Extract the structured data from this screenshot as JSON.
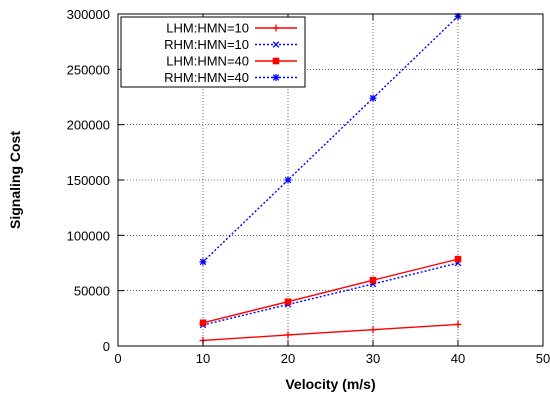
{
  "chart_data": {
    "type": "line",
    "xlabel": "Velocity (m/s)",
    "ylabel": "Signaling Cost",
    "xlim": [
      0,
      50
    ],
    "ylim": [
      0,
      300000
    ],
    "xticks": [
      "0",
      "10",
      "20",
      "30",
      "40",
      "50"
    ],
    "yticks": [
      "0",
      "50000",
      "100000",
      "150000",
      "200000",
      "250000",
      "300000"
    ],
    "grid": true,
    "legend_position": "top-left",
    "series": [
      {
        "name": "LHM:HMN=10",
        "color": "#ff0000",
        "dash": "solid",
        "marker": "plus",
        "x": [
          10,
          20,
          30,
          40
        ],
        "values": [
          5000,
          10000,
          14700,
          19500
        ]
      },
      {
        "name": "RHM:HMN=10",
        "color": "#0000ff",
        "dash": "dotted",
        "marker": "cross",
        "x": [
          10,
          20,
          30,
          40
        ],
        "values": [
          19000,
          37500,
          56000,
          75000
        ]
      },
      {
        "name": "LHM:HMN=40",
        "color": "#ff0000",
        "dash": "solid",
        "marker": "square",
        "x": [
          10,
          20,
          30,
          40
        ],
        "values": [
          21000,
          40000,
          59500,
          78500
        ]
      },
      {
        "name": "RHM:HMN=40",
        "color": "#0000ff",
        "dash": "dotted",
        "marker": "star",
        "x": [
          10,
          20,
          30,
          40
        ],
        "values": [
          76000,
          150000,
          224000,
          298000
        ]
      }
    ]
  }
}
